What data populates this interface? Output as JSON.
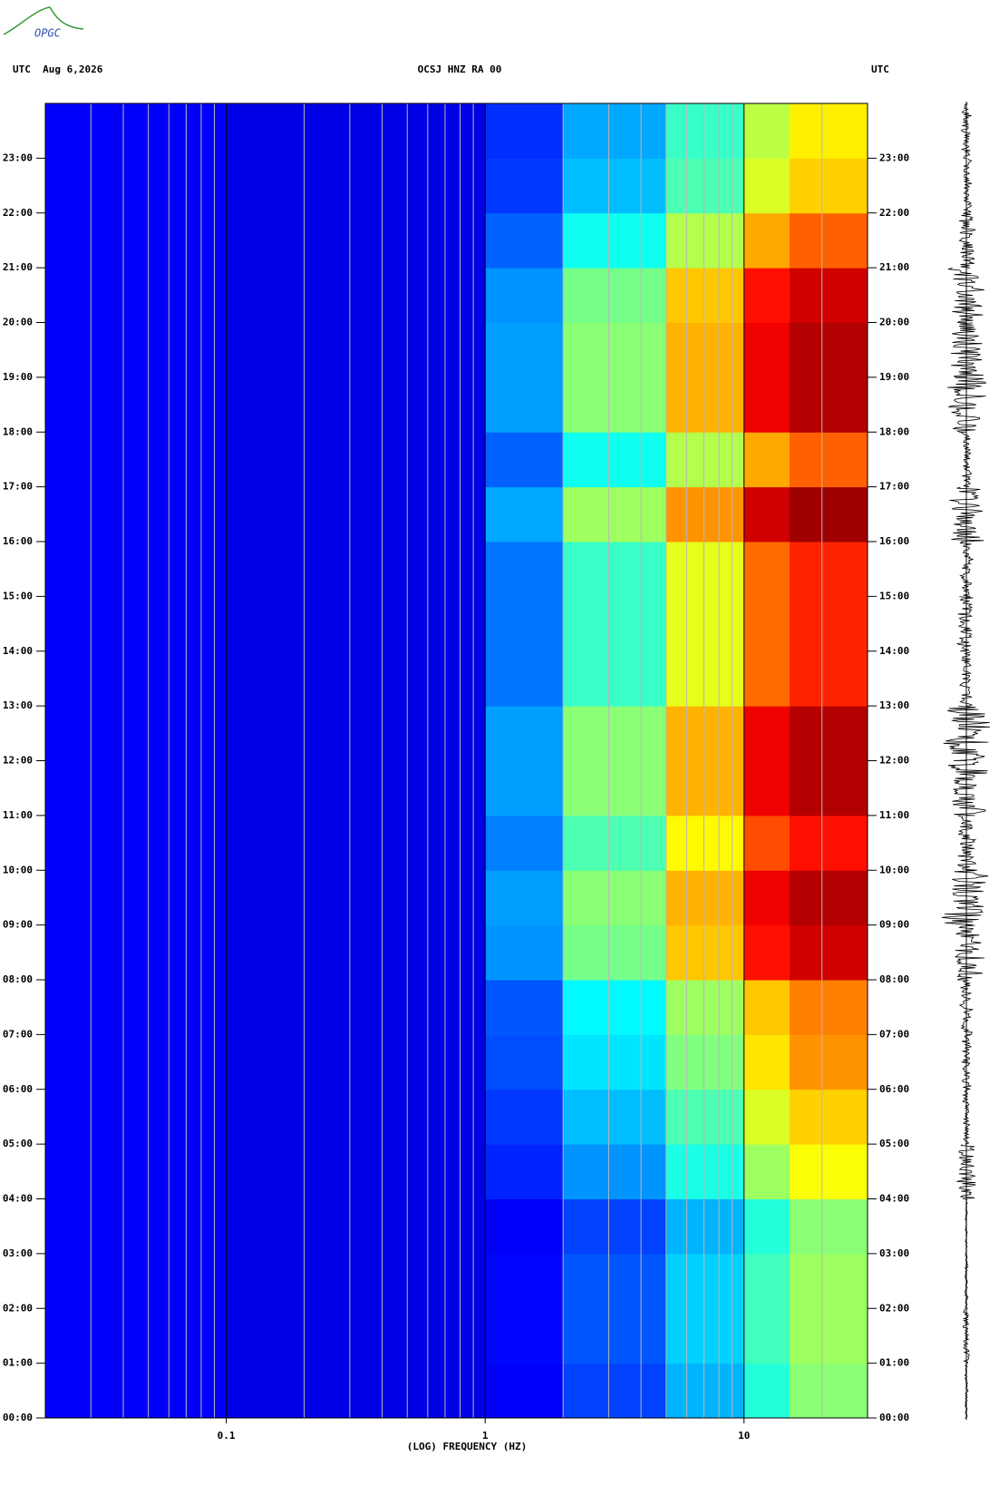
{
  "logo": "OPGC",
  "chart_data": {
    "type": "spectrogram",
    "header_left": "UTC  Aug 6,2026",
    "title": "OCSJ HNZ RA 00",
    "header_right": "UTC",
    "xlabel": "(LOG) FREQUENCY (HZ)",
    "xlog": true,
    "xlim": [
      0.02,
      30
    ],
    "xticks": [
      0.1,
      1,
      10
    ],
    "xminor": [
      0.03,
      0.04,
      0.05,
      0.06,
      0.07,
      0.08,
      0.09,
      0.2,
      0.3,
      0.4,
      0.5,
      0.6,
      0.7,
      0.8,
      0.9,
      2,
      3,
      4,
      5,
      6,
      7,
      8,
      9,
      20
    ],
    "ylim": [
      0,
      24
    ],
    "yticks": [
      {
        "value": 0,
        "label": "00:00"
      },
      {
        "value": 1,
        "label": "01:00"
      },
      {
        "value": 2,
        "label": "02:00"
      },
      {
        "value": 3,
        "label": "03:00"
      },
      {
        "value": 4,
        "label": "04:00"
      },
      {
        "value": 5,
        "label": "05:00"
      },
      {
        "value": 6,
        "label": "06:00"
      },
      {
        "value": 7,
        "label": "07:00"
      },
      {
        "value": 8,
        "label": "08:00"
      },
      {
        "value": 9,
        "label": "09:00"
      },
      {
        "value": 10,
        "label": "10:00"
      },
      {
        "value": 11,
        "label": "11:00"
      },
      {
        "value": 12,
        "label": "12:00"
      },
      {
        "value": 13,
        "label": "13:00"
      },
      {
        "value": 14,
        "label": "14:00"
      },
      {
        "value": 15,
        "label": "15:00"
      },
      {
        "value": 16,
        "label": "16:00"
      },
      {
        "value": 17,
        "label": "17:00"
      },
      {
        "value": 18,
        "label": "18:00"
      },
      {
        "value": 19,
        "label": "19:00"
      },
      {
        "value": 20,
        "label": "20:00"
      },
      {
        "value": 21,
        "label": "21:00"
      },
      {
        "value": 22,
        "label": "22:00"
      },
      {
        "value": 23,
        "label": "23:00"
      }
    ],
    "colormap": "jet",
    "bins": [
      0.02,
      0.1,
      1,
      2,
      5,
      10,
      15,
      30
    ],
    "y_bins": [
      0,
      1,
      2,
      3,
      4,
      5,
      6,
      7,
      8,
      9,
      10,
      11,
      12,
      13,
      14,
      15,
      16,
      17,
      18,
      19,
      20,
      21,
      22,
      23,
      24
    ],
    "z": [
      [
        0.12,
        0.1,
        0.12,
        0.19,
        0.3,
        0.41,
        0.51
      ],
      [
        0.12,
        0.1,
        0.13,
        0.21,
        0.33,
        0.44,
        0.53
      ],
      [
        0.12,
        0.1,
        0.13,
        0.21,
        0.33,
        0.44,
        0.53
      ],
      [
        0.12,
        0.1,
        0.12,
        0.19,
        0.3,
        0.41,
        0.51
      ],
      [
        0.12,
        0.1,
        0.16,
        0.27,
        0.4,
        0.53,
        0.62
      ],
      [
        0.12,
        0.1,
        0.18,
        0.31,
        0.45,
        0.59,
        0.67
      ],
      [
        0.12,
        0.1,
        0.2,
        0.35,
        0.5,
        0.65,
        0.73
      ],
      [
        0.12,
        0.1,
        0.21,
        0.37,
        0.53,
        0.68,
        0.75
      ],
      [
        0.12,
        0.1,
        0.27,
        0.49,
        0.68,
        0.86,
        0.92
      ],
      [
        0.12,
        0.1,
        0.28,
        0.51,
        0.7,
        0.89,
        0.95
      ],
      [
        0.12,
        0.1,
        0.25,
        0.45,
        0.63,
        0.8,
        0.86
      ],
      [
        0.12,
        0.1,
        0.28,
        0.51,
        0.7,
        0.89,
        0.95
      ],
      [
        0.12,
        0.1,
        0.28,
        0.51,
        0.7,
        0.89,
        0.95
      ],
      [
        0.12,
        0.1,
        0.24,
        0.43,
        0.6,
        0.77,
        0.84
      ],
      [
        0.12,
        0.1,
        0.24,
        0.43,
        0.6,
        0.77,
        0.84
      ],
      [
        0.12,
        0.1,
        0.24,
        0.43,
        0.6,
        0.77,
        0.84
      ],
      [
        0.12,
        0.1,
        0.29,
        0.53,
        0.73,
        0.92,
        0.97
      ],
      [
        0.12,
        0.1,
        0.22,
        0.39,
        0.55,
        0.71,
        0.78
      ],
      [
        0.12,
        0.1,
        0.28,
        0.51,
        0.7,
        0.89,
        0.95
      ],
      [
        0.12,
        0.1,
        0.28,
        0.51,
        0.7,
        0.89,
        0.95
      ],
      [
        0.12,
        0.1,
        0.27,
        0.49,
        0.68,
        0.86,
        0.92
      ],
      [
        0.12,
        0.1,
        0.22,
        0.39,
        0.55,
        0.71,
        0.78
      ],
      [
        0.12,
        0.1,
        0.18,
        0.31,
        0.45,
        0.59,
        0.67
      ],
      [
        0.12,
        0.1,
        0.17,
        0.29,
        0.43,
        0.56,
        0.64
      ]
    ],
    "trace": {
      "color": "#000000",
      "values": [
        0.05,
        0.1,
        0.05,
        0.03,
        0.35,
        0.1,
        0.15,
        0.2,
        0.5,
        0.7,
        0.35,
        0.7,
        0.7,
        0.2,
        0.25,
        0.2,
        0.55,
        0.15,
        0.6,
        0.6,
        0.5,
        0.3,
        0.15,
        0.15
      ]
    }
  }
}
